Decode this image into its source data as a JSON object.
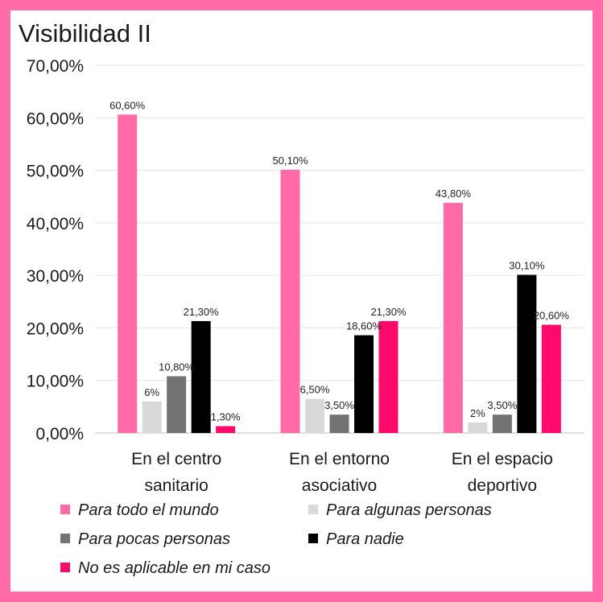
{
  "chart_data": {
    "type": "bar",
    "title": "Visibilidad II",
    "categories": [
      [
        "En el centro",
        "sanitario"
      ],
      [
        "En el entorno",
        "asociativo"
      ],
      [
        "En el espacio",
        "deportivo"
      ]
    ],
    "series": [
      {
        "name": "Para todo el mundo",
        "color": "#ff6aa7",
        "values": [
          60.6,
          50.1,
          43.8
        ],
        "labels": [
          "60,60%",
          "50,10%",
          "43,80%"
        ]
      },
      {
        "name": "Para algunas personas",
        "color": "#d9d9d9",
        "values": [
          6.0,
          6.5,
          2.0
        ],
        "labels": [
          "6%",
          "6,50%",
          "2%"
        ]
      },
      {
        "name": "Para pocas personas",
        "color": "#737373",
        "values": [
          10.8,
          3.5,
          3.5
        ],
        "labels": [
          "10,80%",
          "3,50%",
          "3,50%"
        ]
      },
      {
        "name": "Para nadie",
        "color": "#000000",
        "values": [
          21.3,
          18.6,
          30.1
        ],
        "labels": [
          "21,30%",
          "18,60%",
          "30,10%"
        ]
      },
      {
        "name": "No es aplicable en mi caso",
        "color": "#ff0a6c",
        "values": [
          1.3,
          21.3,
          20.6
        ],
        "labels": [
          "1,30%",
          "21,30%",
          "20,60%"
        ]
      }
    ],
    "ylim": [
      0,
      70
    ],
    "yticks": [
      "0,00%",
      "10,00%",
      "20,00%",
      "30,00%",
      "40,00%",
      "50,00%",
      "60,00%",
      "70,00%"
    ],
    "grid": true,
    "legend_position": "bottom"
  }
}
